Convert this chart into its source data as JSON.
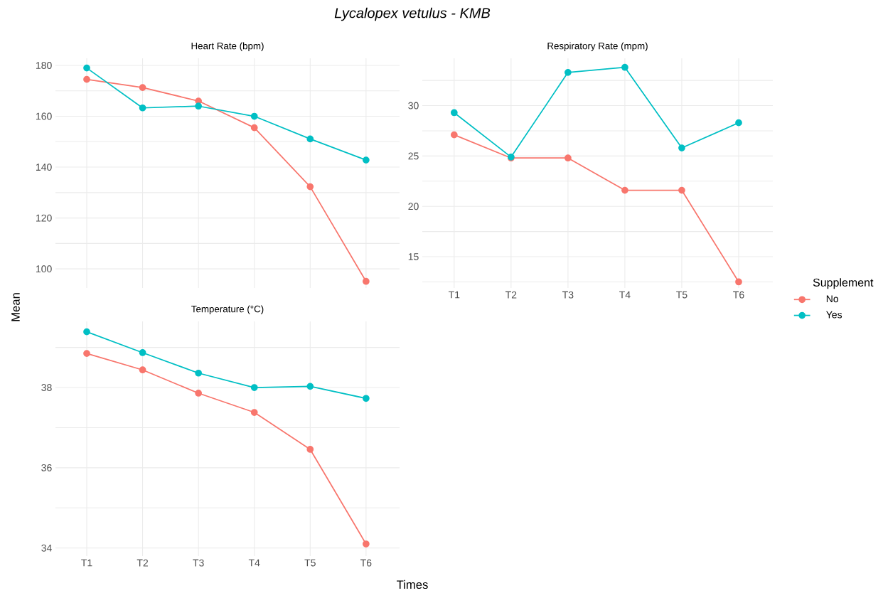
{
  "chart_data": [
    {
      "type": "line",
      "title": "Heart Rate (bpm)",
      "categories": [
        null,
        null,
        null,
        null,
        null,
        null
      ],
      "ylim": [
        92.5,
        182.8
      ],
      "yticks": [
        100,
        {
          "value": 110,
          "label": null
        },
        120,
        {
          "value": 130,
          "label": null
        },
        140,
        {
          "value": 150,
          "label": null
        },
        160,
        {
          "value": 170,
          "label": null
        },
        180
      ],
      "tick_labels": "y",
      "grid": true,
      "marker": "circle",
      "line_style": "solid",
      "series": [
        {
          "color": "#f8766d",
          "values": [
            174.5,
            171.3,
            166,
            155.5,
            132.3,
            95.1
          ]
        },
        {
          "color": "#00bfc4",
          "values": [
            179,
            163.3,
            164,
            160,
            151.1,
            142.8
          ]
        }
      ]
    },
    {
      "type": "line",
      "title": "Respiratory Rate (mpm)",
      "categories": [
        "T1",
        "T2",
        "T3",
        "T4",
        "T5",
        "T6"
      ],
      "ylim": [
        11.9,
        34.7
      ],
      "yticks": [
        {
          "value": 12.5,
          "label": null
        },
        15,
        {
          "value": 17.5,
          "label": null
        },
        20,
        {
          "value": 22.5,
          "label": null
        },
        25,
        {
          "value": 27.5,
          "label": null
        },
        30,
        {
          "value": 32.5,
          "label": null
        }
      ],
      "grid": true,
      "marker": "circle",
      "line_style": "solid",
      "legend": "right",
      "legend_title": "Supplement",
      "series": [
        {
          "name": "No",
          "color": "#f8766d",
          "values": [
            27.1,
            24.8,
            24.8,
            21.6,
            21.6,
            12.5
          ]
        },
        {
          "name": "Yes",
          "color": "#00bfc4",
          "values": [
            29.3,
            24.9,
            33.3,
            33.8,
            25.8,
            28.3
          ]
        }
      ]
    },
    {
      "type": "line",
      "title": "Temperature (°C)",
      "xlabel": "Times",
      "ylabel": "Mean",
      "categories": [
        "T1",
        "T2",
        "T3",
        "T4",
        "T5",
        "T6"
      ],
      "ylim": [
        33.8,
        39.65
      ],
      "yticks": [
        34,
        {
          "value": 35,
          "label": null
        },
        36,
        {
          "value": 37,
          "label": null
        },
        38,
        {
          "value": 39,
          "label": null
        }
      ],
      "grid": true,
      "marker": "circle",
      "line_style": "solid",
      "series": [
        {
          "color": "#f8766d",
          "values": [
            38.85,
            38.44,
            37.86,
            37.38,
            36.46,
            34.1
          ]
        },
        {
          "color": "#00bfc4",
          "values": [
            39.39,
            38.87,
            38.36,
            38.0,
            38.03,
            37.73
          ]
        }
      ]
    },
    {
      "type": "other",
      "title": "Lycalopex vetulus - KMB"
    }
  ]
}
